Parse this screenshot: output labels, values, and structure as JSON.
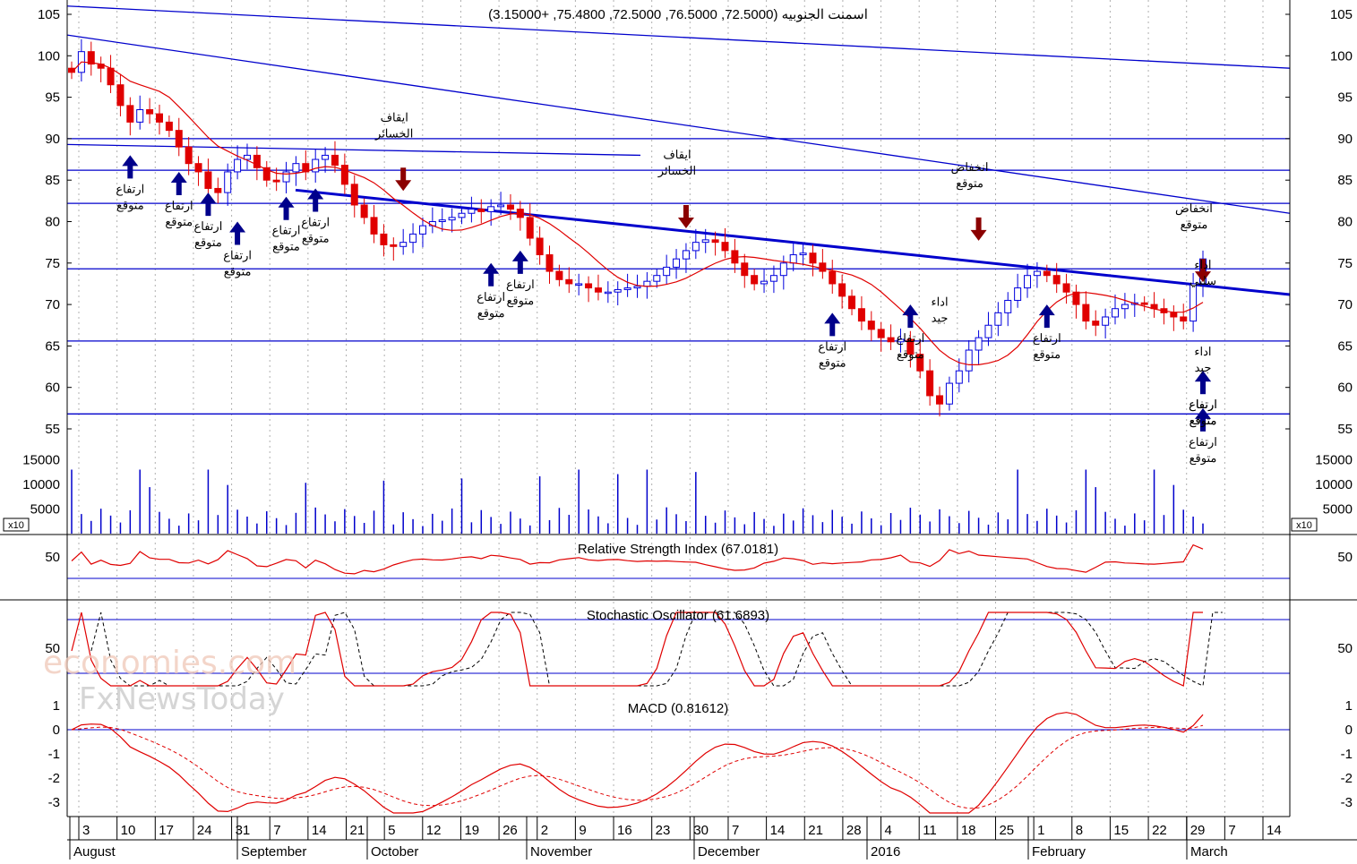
{
  "watermark": {
    "line1": "economies.com",
    "line2": "FxNewsToday"
  },
  "chart_data": {
    "type": "candlestick",
    "title": "اسمنت الجنوبيه (72.5000, 76.5000, 72.5000, 75.4800, +3.15000)",
    "price_axis": {
      "ticks": [
        "105",
        "100",
        "95",
        "90",
        "85",
        "80",
        "75",
        "70",
        "65",
        "60",
        "55"
      ]
    },
    "volume_axis": {
      "ticks": [
        "15000",
        "10000",
        "5000"
      ],
      "multiplier_label": "x10"
    },
    "rsi": {
      "title": "Relative Strength Index (67.0181)",
      "ticks": [
        "50"
      ]
    },
    "stochastic": {
      "title": "Stochastic Oscillator (61.6893)",
      "ticks": [
        "50"
      ]
    },
    "macd": {
      "title": "MACD (0.81612)",
      "ticks": [
        "1",
        "0",
        "-1",
        "-2",
        "-3"
      ]
    },
    "x_day_labels": [
      "3",
      "10",
      "17",
      "24",
      "31",
      "7",
      "14",
      "21",
      "5",
      "12",
      "19",
      "26",
      "2",
      "9",
      "16",
      "23",
      "30",
      "7",
      "14",
      "21",
      "28",
      "4",
      "11",
      "18",
      "25",
      "1",
      "8",
      "15",
      "22",
      "29",
      "7",
      "14"
    ],
    "x_month_labels": [
      "August",
      "September",
      "October",
      "November",
      "December",
      "2016",
      "February",
      "March"
    ],
    "horizontal_levels": [
      90,
      86.2,
      82.2,
      74.3,
      65.6,
      56.8
    ],
    "close_series": [
      98,
      100.5,
      99,
      98.5,
      96.5,
      94,
      92,
      93.5,
      93,
      92,
      91,
      89,
      87,
      86,
      84,
      83.5,
      86,
      87.5,
      88,
      86.5,
      85,
      84.8,
      86,
      87,
      86,
      87.5,
      88,
      86.8,
      84.5,
      82,
      80.5,
      78.5,
      77.2,
      77,
      77.5,
      78.5,
      79.5,
      80,
      80.2,
      80.5,
      81,
      81.5,
      81.2,
      81.8,
      82,
      81.5,
      80.5,
      78,
      76,
      74,
      73,
      72.5,
      72.5,
      72,
      71.5,
      71.5,
      71.8,
      72,
      72.2,
      72.8,
      73.5,
      74.5,
      75.5,
      76.5,
      77.5,
      77.8,
      77.5,
      76.5,
      75,
      73.5,
      72.5,
      72.8,
      73.5,
      75,
      76,
      76.2,
      75,
      74,
      72.5,
      71,
      69.5,
      68,
      67,
      66,
      65.5,
      65.8,
      64,
      62,
      59,
      58,
      60.5,
      62,
      64.5,
      66,
      67.5,
      69,
      70.5,
      72,
      73.5,
      74,
      73.5,
      72.5,
      71.5,
      70,
      68,
      67.5,
      68.5,
      69.5,
      70,
      70.2,
      70,
      69.5,
      69,
      68.5,
      68,
      72.5,
      75.5
    ],
    "annotations": [
      {
        "text": "ارتفاع متوقع",
        "type": "buy",
        "index": 6,
        "price": 88
      },
      {
        "text": "ارتفاع متوقع",
        "type": "buy",
        "index": 11,
        "price": 86
      },
      {
        "text": "ارتفاع متوقع",
        "type": "buy",
        "index": 14,
        "price": 83.5
      },
      {
        "text": "ارتفاع متوقع",
        "type": "buy",
        "index": 17,
        "price": 80
      },
      {
        "text": "ارتفاع متوقع",
        "type": "buy",
        "index": 22,
        "price": 83
      },
      {
        "text": "ارتفاع متوقع",
        "type": "buy",
        "index": 25,
        "price": 84
      },
      {
        "text": "ايقاف الخسائر",
        "type": "sell",
        "index": 34,
        "price": 86.5
      },
      {
        "text": "ارتفاع متوقع",
        "type": "buy",
        "index": 43,
        "price": 75
      },
      {
        "text": "ارتفاع متوقع",
        "type": "buy",
        "index": 46,
        "price": 76.5
      },
      {
        "text": "ايقاف الخسائر",
        "type": "sell",
        "index": 63,
        "price": 82
      },
      {
        "text": "ارتفاع متوقع",
        "type": "buy",
        "index": 78,
        "price": 69
      },
      {
        "text": "ارتفاع متوقع",
        "type": "buy",
        "index": 86,
        "price": 70
      },
      {
        "text": "اداء جيد",
        "type": "text",
        "index": 89,
        "price": 72
      },
      {
        "text": "انخفاض متوقع",
        "type": "sell",
        "index": 93,
        "price": 80.5
      },
      {
        "text": "ارتفاع متوقع",
        "type": "buy",
        "index": 100,
        "price": 70
      },
      {
        "text": "ارتفاع متوقع",
        "type": "buy",
        "index": 121,
        "price": 62
      },
      {
        "text": "ارتفاع متوقع",
        "type": "buy",
        "index": 131,
        "price": 57.5
      },
      {
        "text": "ارتفاع متوقع",
        "type": "buy",
        "index": 134,
        "price": 62
      },
      {
        "text": "اداء جيد",
        "type": "text",
        "index": 142,
        "price": 66
      },
      {
        "text": "انخفاض متوقع",
        "type": "sell",
        "index": 150,
        "price": 75.5
      },
      {
        "text": "اداء سلبي",
        "type": "text",
        "index": 158,
        "price": 76.5
      }
    ]
  }
}
